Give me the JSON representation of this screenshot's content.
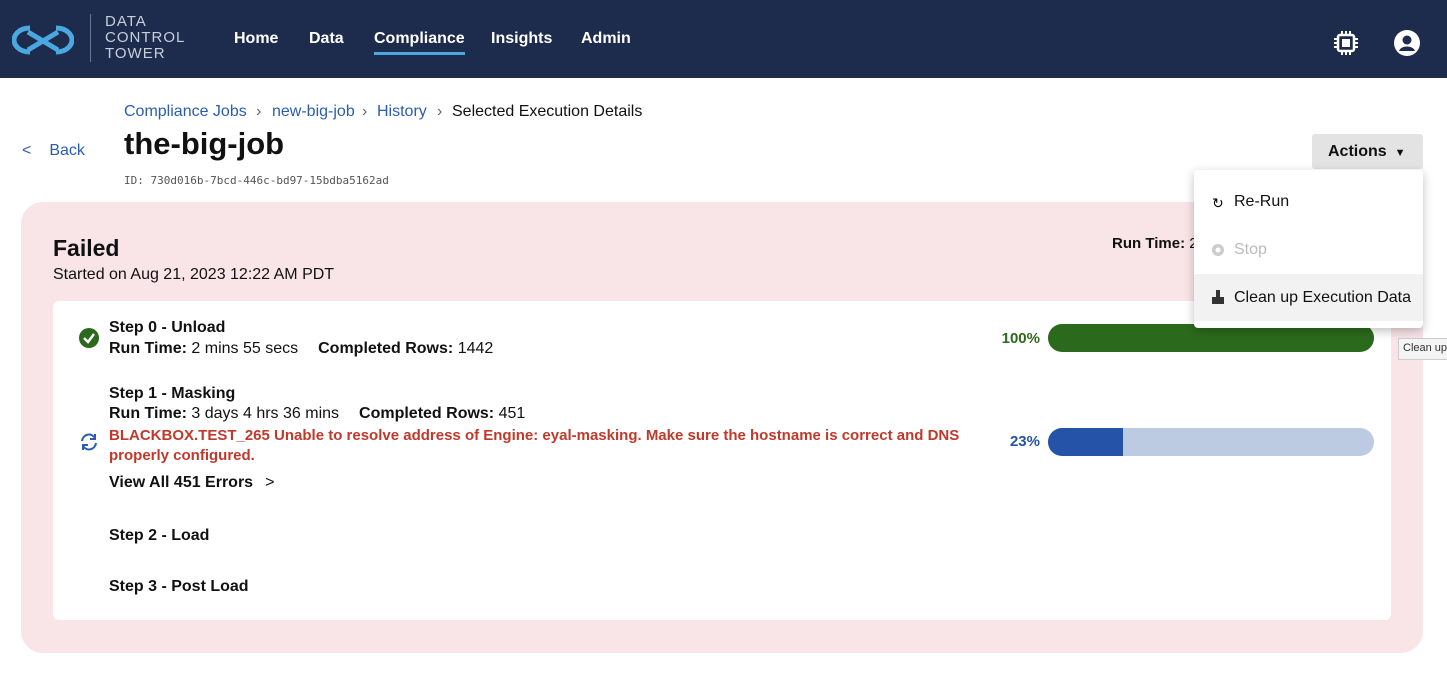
{
  "header": {
    "logo_text": "DATA CONTROL TOWER",
    "nav": [
      "Home",
      "Data",
      "Compliance",
      "Insights",
      "Admin"
    ],
    "active_nav": "Compliance"
  },
  "breadcrumb": [
    "Compliance Jobs",
    "new-big-job",
    "History",
    "Selected Execution Details"
  ],
  "back": "Back",
  "title": "the-big-job",
  "id_text": "ID: 730d016b-7bcd-446c-bd97-15bdba5162ad",
  "actions_button": "Actions",
  "actions_menu": [
    "Re-Run",
    "Stop",
    "Clean up Execution Data"
  ],
  "tooltip": "Clean up",
  "execution": {
    "status": "Failed",
    "started": "Started on Aug 21, 2023 12:22 AM PDT",
    "run_time_label": "Run Time:",
    "run_time_value": "2"
  },
  "steps": [
    {
      "title": "Step 0 - Unload",
      "run_time_label": "Run Time:",
      "run_time": "2 mins 55 secs",
      "rows_label": "Completed Rows:",
      "rows": "1442",
      "progress": 100,
      "progress_label": "100%"
    },
    {
      "title": "Step 1 - Masking",
      "run_time_label": "Run Time:",
      "run_time": "3 days 4 hrs 36 mins",
      "rows_label": "Completed Rows:",
      "rows": "451",
      "error": "BLACKBOX.TEST_265 Unable to resolve address of Engine: eyal-masking. Make sure the hostname is correct and DNS properly configured.",
      "errors_link": "View All 451 Errors",
      "progress": 23,
      "progress_label": "23%"
    },
    {
      "title": "Step 2 - Load"
    },
    {
      "title": "Step 3 - Post Load"
    }
  ]
}
